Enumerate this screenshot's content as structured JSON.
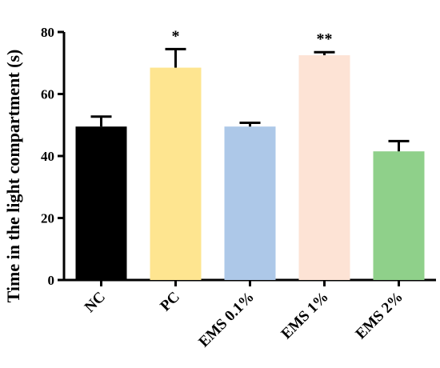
{
  "chart_data": {
    "type": "bar",
    "title": "",
    "xlabel": "",
    "ylabel": "Time in the light compartment (s)",
    "ylim": [
      0,
      80
    ],
    "yticks": [
      0,
      20,
      40,
      60,
      80
    ],
    "grid": false,
    "categories": [
      "NC",
      "PC",
      "EMS 0.1%",
      "EMS 1%",
      "EMS 2%"
    ],
    "values": [
      49.5,
      68.5,
      49.5,
      72.5,
      41.5
    ],
    "errors": [
      3.2,
      6.0,
      1.2,
      1.0,
      3.3
    ],
    "significance": [
      "",
      "*",
      "",
      "**",
      ""
    ],
    "colors": [
      "#000000",
      "#fee590",
      "#adc8e8",
      "#fde3d5",
      "#8fd08a"
    ]
  }
}
